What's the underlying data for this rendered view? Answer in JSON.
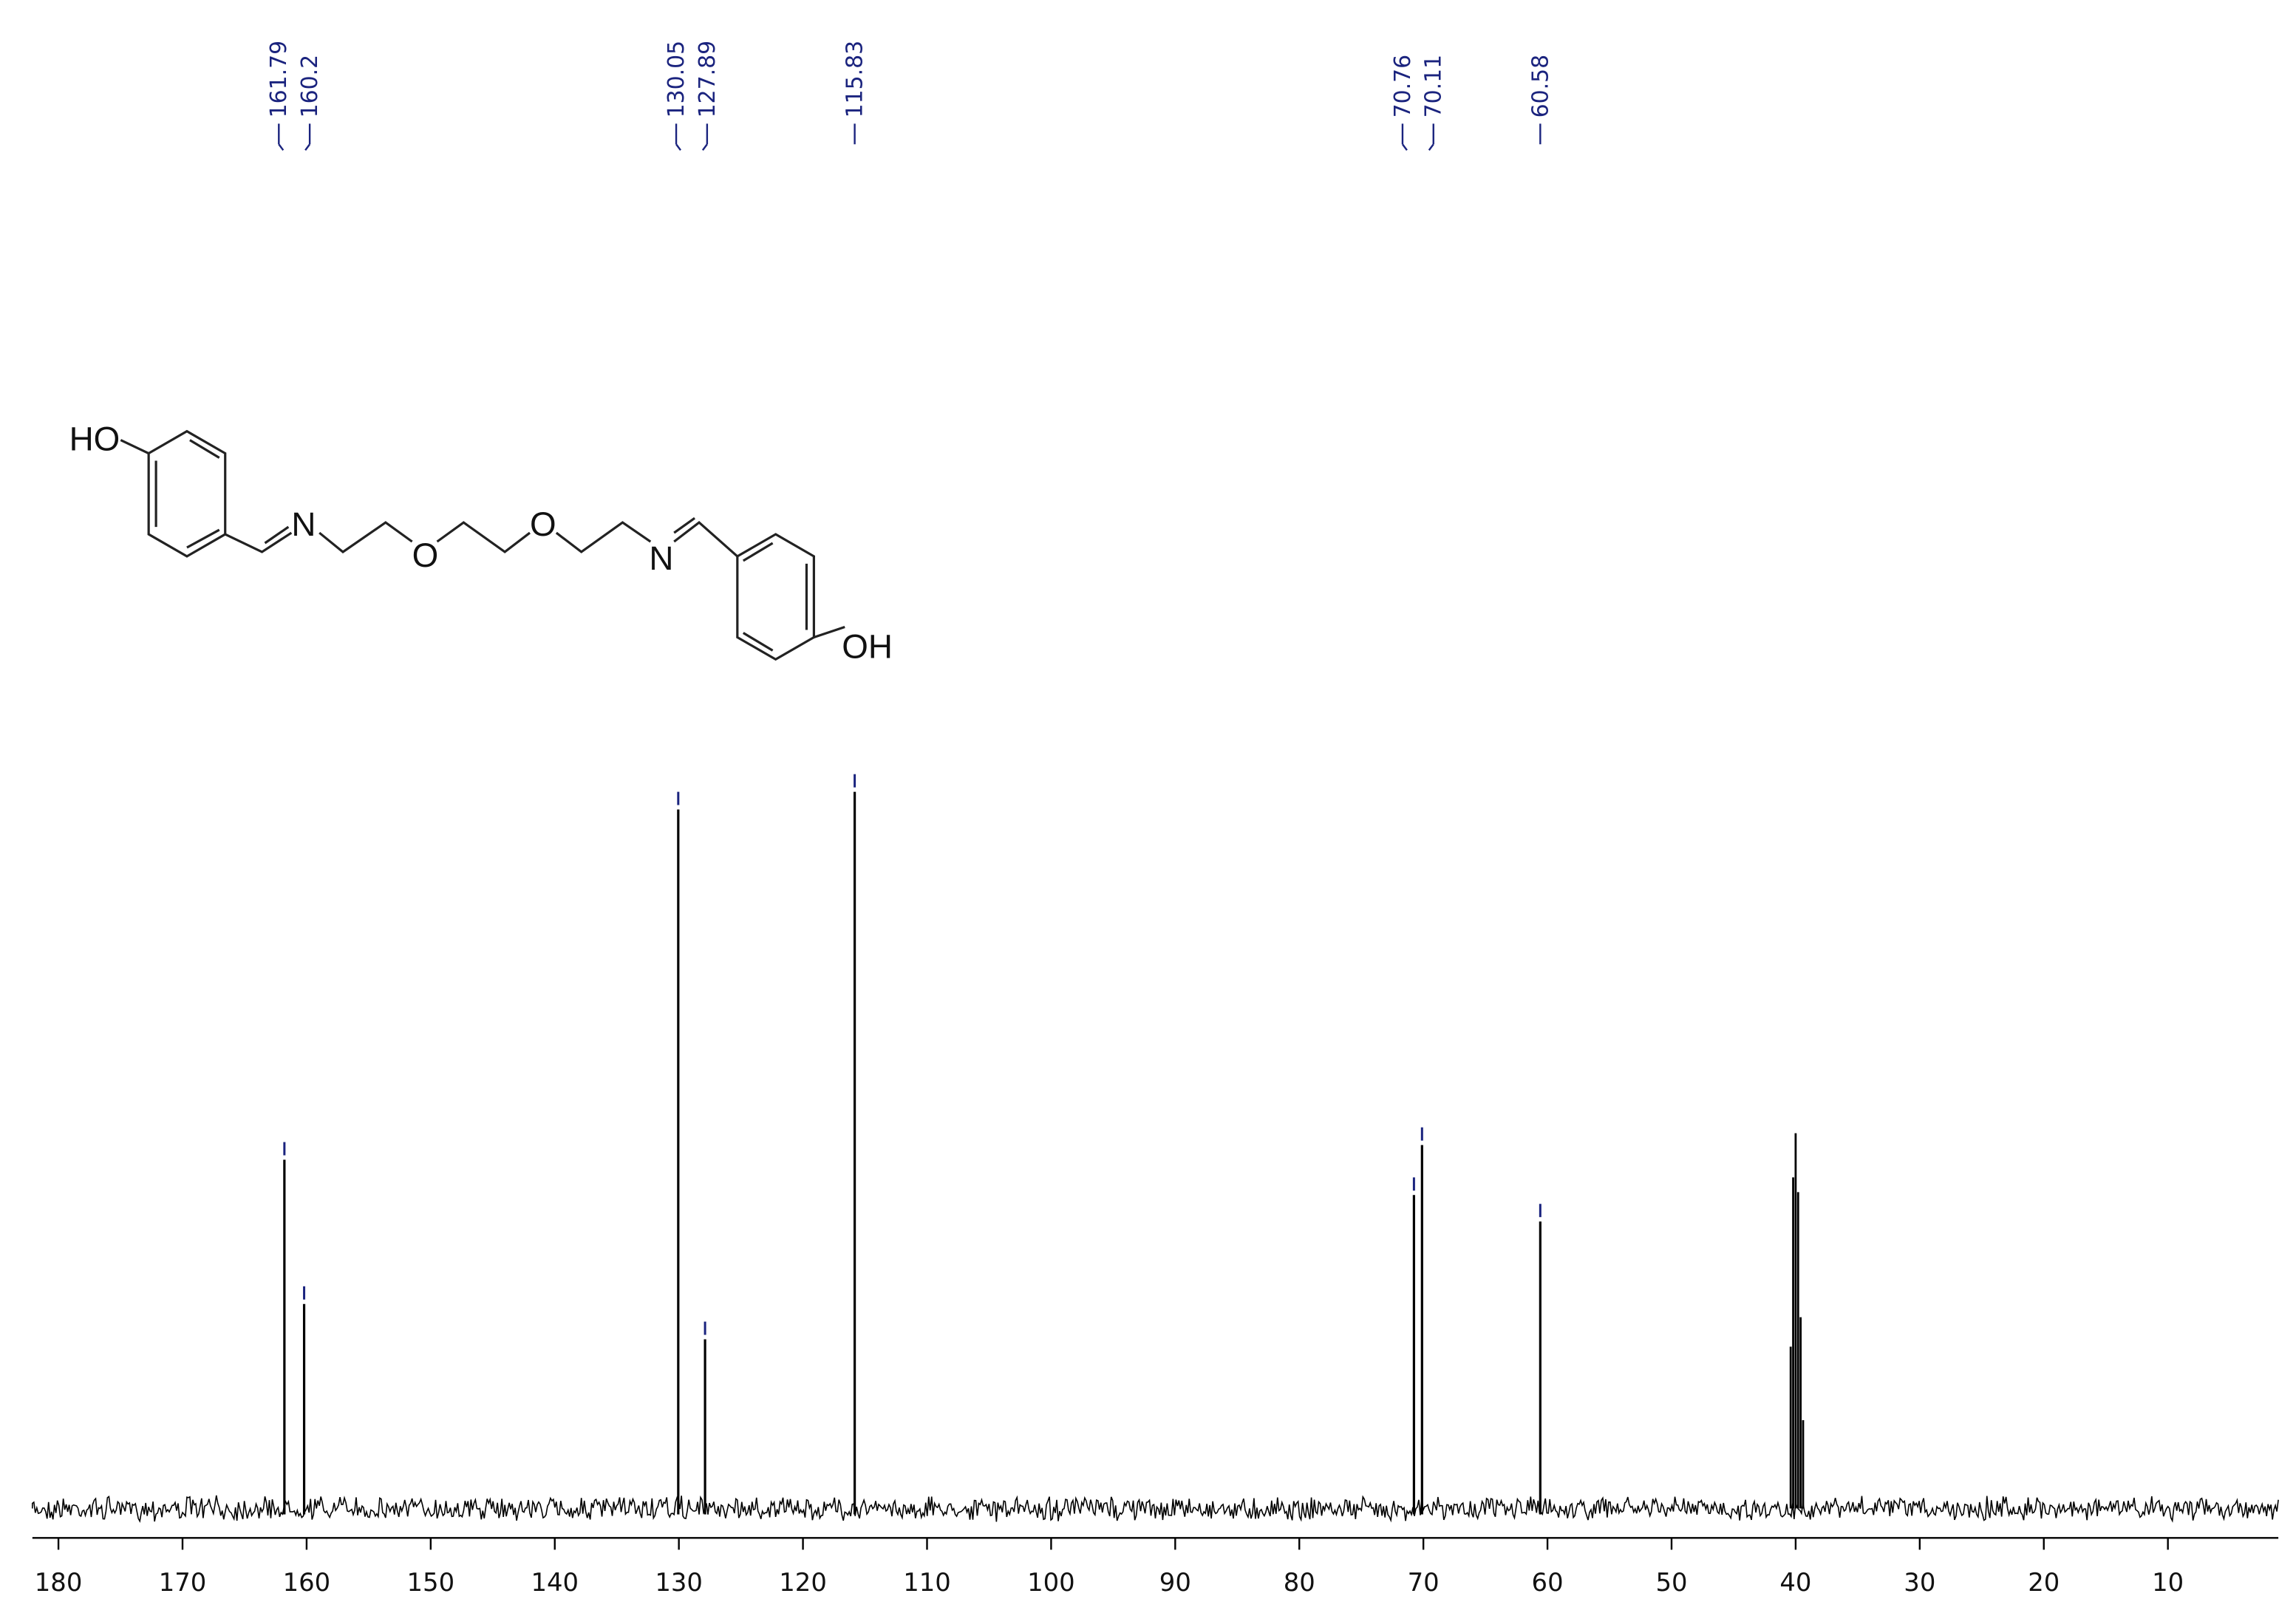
{
  "chart_data": {
    "type": "spectrum",
    "x": [
      161.79,
      160.2,
      130.05,
      127.89,
      115.83,
      70.76,
      70.11,
      60.58
    ],
    "values": [
      237,
      139,
      475,
      115,
      487,
      213,
      247,
      195
    ],
    "solvent": {
      "x": [
        40.4,
        40.2,
        40.0,
        39.8,
        39.6,
        39.4
      ],
      "values": [
        110,
        225,
        255,
        215,
        130,
        60
      ]
    },
    "color": "#000000",
    "label_color": "#1a237e",
    "xlim": [
      182.1,
      1.1
    ],
    "xticks": [
      180,
      170,
      160,
      150,
      140,
      130,
      120,
      110,
      100,
      90,
      80,
      70,
      60,
      50,
      40,
      30,
      20,
      10
    ],
    "annotations": [
      "HO",
      "N",
      "O",
      "O",
      "N",
      "OH"
    ]
  }
}
